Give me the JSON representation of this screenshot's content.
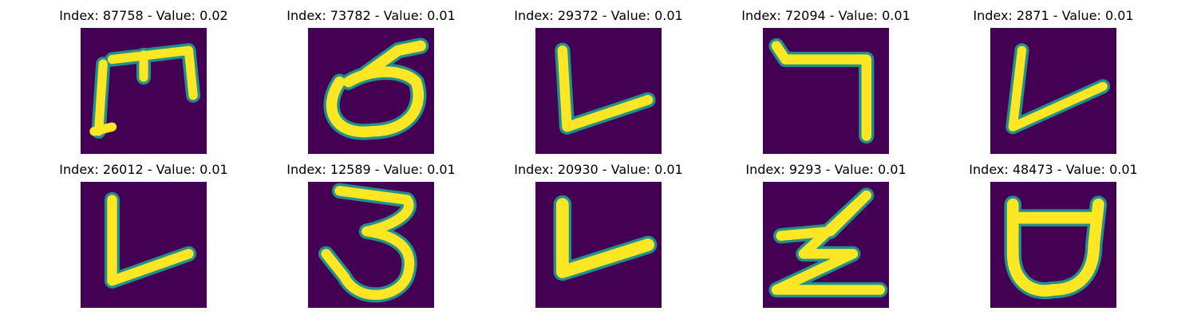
{
  "figure": {
    "background": "#ffffff",
    "colormap": "viridis",
    "panels": [
      {
        "title": "Index: 87758 - Value: 0.02",
        "index": 87758,
        "value": 0.02,
        "glyph": "Ш-like"
      },
      {
        "title": "Index: 73782 - Value: 0.01",
        "index": 73782,
        "value": 0.01,
        "glyph": "ઠ-like"
      },
      {
        "title": "Index: 29372 - Value: 0.01",
        "index": 29372,
        "value": 0.01,
        "glyph": "L-like"
      },
      {
        "title": "Index: 72094 - Value: 0.01",
        "index": 72094,
        "value": 0.01,
        "glyph": "7-like"
      },
      {
        "title": "Index: 2871 - Value: 0.01",
        "index": 2871,
        "value": 0.01,
        "glyph": "V-like"
      },
      {
        "title": "Index: 26012 - Value: 0.01",
        "index": 26012,
        "value": 0.01,
        "glyph": "L-like"
      },
      {
        "title": "Index: 12589 - Value: 0.01",
        "index": 12589,
        "value": 0.01,
        "glyph": "3-like"
      },
      {
        "title": "Index: 20930 - Value: 0.01",
        "index": 20930,
        "value": 0.01,
        "glyph": "L-like"
      },
      {
        "title": "Index: 9293 - Value: 0.01",
        "index": 9293,
        "value": 0.01,
        "glyph": "Z-like"
      },
      {
        "title": "Index: 48473 - Value: 0.01",
        "index": 48473,
        "value": 0.01,
        "glyph": "ઠ-like"
      }
    ],
    "colors": {
      "background_pixel": "#440154",
      "edge_pixel": "#21918c",
      "mid_pixel": "#7ad151",
      "stroke_pixel": "#fde725"
    }
  }
}
